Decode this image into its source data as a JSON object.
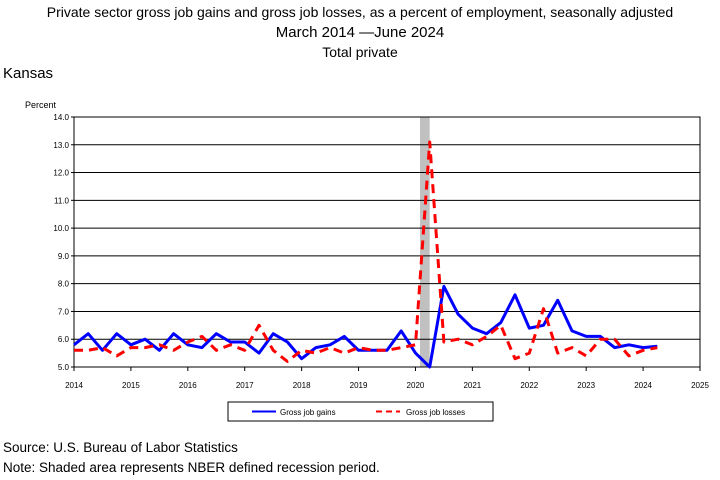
{
  "header": {
    "title_line1": "Private sector gross job gains and gross job losses, as a percent of employment, seasonally adjusted",
    "title_line2": "March 2014 —June 2024",
    "title_line3": "Total private",
    "state": "Kansas"
  },
  "footer": {
    "source": "Source: U.S. Bureau of Labor Statistics",
    "note": "Note: Shaded area represents NBER defined recession period."
  },
  "chart_data": {
    "type": "line",
    "title": "Private sector gross job gains and gross job losses, as a percent of employment, seasonally adjusted",
    "ylabel": "Percent",
    "xlabel": "",
    "ylim": [
      5.0,
      14.0
    ],
    "xlim": [
      2014,
      2025
    ],
    "y_ticks": [
      "5.0",
      "6.0",
      "7.0",
      "8.0",
      "9.0",
      "10.0",
      "11.0",
      "12.0",
      "13.0",
      "14.0"
    ],
    "x_ticks": [
      "2014",
      "2015",
      "2016",
      "2017",
      "2018",
      "2019",
      "2020",
      "2021",
      "2022",
      "2023",
      "2024",
      "2025"
    ],
    "grid": "horizontal",
    "legend_position": "bottom",
    "recession": {
      "start": 2020.08,
      "end": 2020.25,
      "color": "#c0c0c0"
    },
    "series": [
      {
        "name": "Gross job gains",
        "color": "#0000ff",
        "dash": "solid",
        "x": [
          2014.0,
          2014.25,
          2014.5,
          2014.75,
          2015.0,
          2015.25,
          2015.5,
          2015.75,
          2016.0,
          2016.25,
          2016.5,
          2016.75,
          2017.0,
          2017.25,
          2017.5,
          2017.75,
          2018.0,
          2018.25,
          2018.5,
          2018.75,
          2019.0,
          2019.25,
          2019.5,
          2019.75,
          2020.0,
          2020.25,
          2020.5,
          2020.75,
          2021.0,
          2021.25,
          2021.5,
          2021.75,
          2022.0,
          2022.25,
          2022.5,
          2022.75,
          2023.0,
          2023.25,
          2023.5,
          2023.75,
          2024.0,
          2024.25
        ],
        "values": [
          5.8,
          6.2,
          5.6,
          6.2,
          5.8,
          6.0,
          5.6,
          6.2,
          5.8,
          5.7,
          6.2,
          5.9,
          5.9,
          5.5,
          6.2,
          5.9,
          5.3,
          5.7,
          5.8,
          6.1,
          5.6,
          5.6,
          5.6,
          6.3,
          5.5,
          5.0,
          7.9,
          6.9,
          6.4,
          6.2,
          6.6,
          7.6,
          6.4,
          6.5,
          7.4,
          6.3,
          6.1,
          6.1,
          5.7,
          5.8,
          5.7,
          5.75
        ]
      },
      {
        "name": "Gross job losses",
        "color": "#ff0000",
        "dash": "dashed",
        "x": [
          2014.0,
          2014.25,
          2014.5,
          2014.75,
          2015.0,
          2015.25,
          2015.5,
          2015.75,
          2016.0,
          2016.25,
          2016.5,
          2016.75,
          2017.0,
          2017.25,
          2017.5,
          2017.75,
          2018.0,
          2018.25,
          2018.5,
          2018.75,
          2019.0,
          2019.25,
          2019.5,
          2019.75,
          2020.0,
          2020.25,
          2020.5,
          2020.75,
          2021.0,
          2021.25,
          2021.5,
          2021.75,
          2022.0,
          2022.25,
          2022.5,
          2022.75,
          2023.0,
          2023.25,
          2023.5,
          2023.75,
          2024.0,
          2024.25
        ],
        "values": [
          5.6,
          5.6,
          5.7,
          5.4,
          5.7,
          5.7,
          5.8,
          5.6,
          5.9,
          6.1,
          5.6,
          5.8,
          5.6,
          6.5,
          5.6,
          5.2,
          5.6,
          5.5,
          5.7,
          5.5,
          5.7,
          5.6,
          5.6,
          5.7,
          5.8,
          13.1,
          5.9,
          6.0,
          5.8,
          6.1,
          6.5,
          5.3,
          5.5,
          7.1,
          5.5,
          5.7,
          5.4,
          6.0,
          6.0,
          5.4,
          5.6,
          5.7
        ]
      }
    ]
  }
}
